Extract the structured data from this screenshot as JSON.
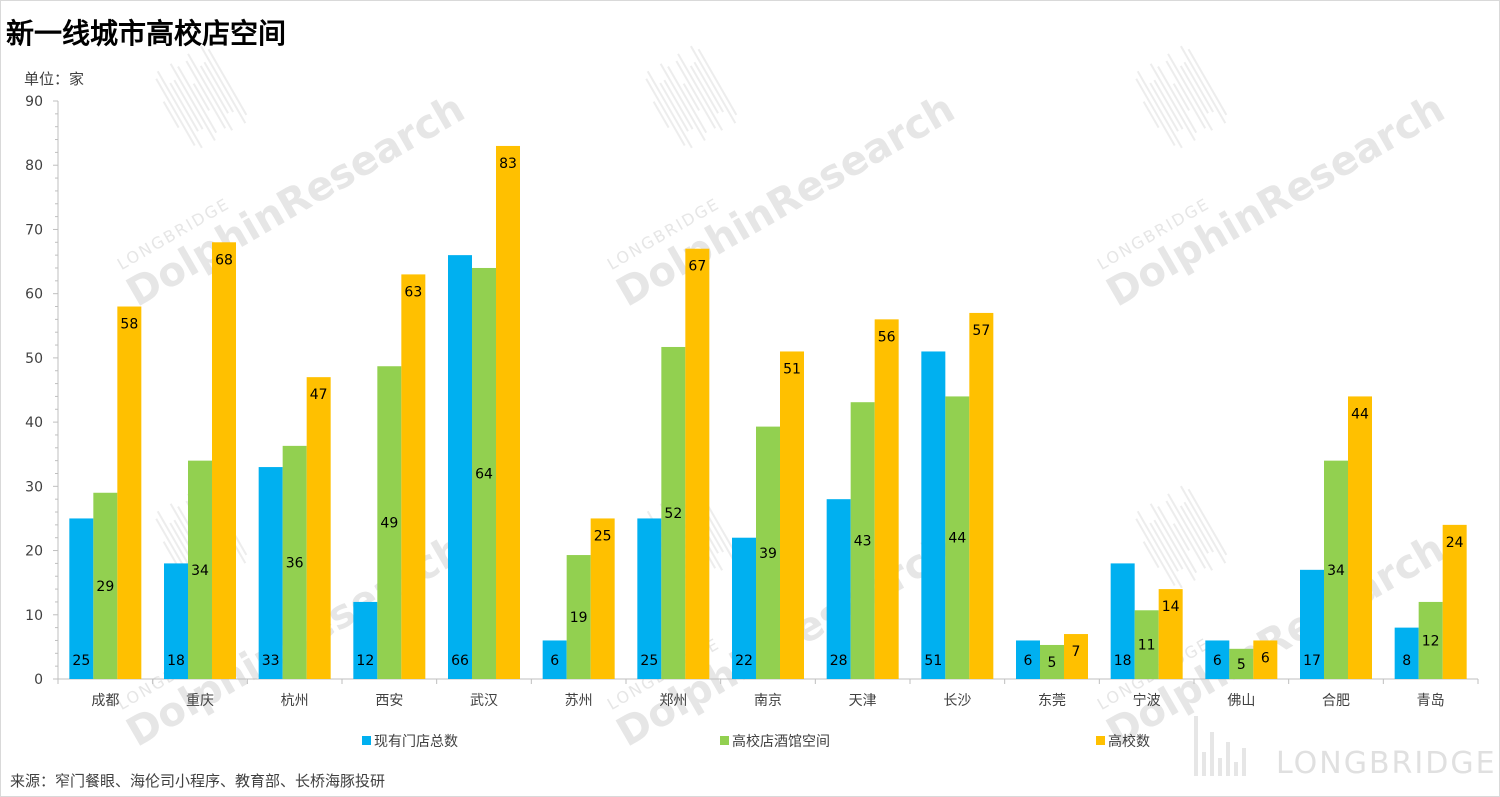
{
  "title": "新一线城市高校店空间",
  "unit_label": "单位：家",
  "source": "来源：窄门餐眼、海伦司小程序、教育部、长桥海豚投研",
  "watermark": {
    "brand": "LONGBRIDGE",
    "research": "DolphinResearch",
    "footer_brand": "LONGBRIDGE"
  },
  "chart_data": {
    "type": "bar",
    "title": "新一线城市高校店空间",
    "ylabel": "单位：家",
    "ylim": [
      0,
      90
    ],
    "yticks": [
      0,
      10,
      20,
      30,
      40,
      50,
      60,
      70,
      80,
      90
    ],
    "grid": false,
    "legend_position": "bottom",
    "categories": [
      "成都",
      "重庆",
      "杭州",
      "西安",
      "武汉",
      "苏州",
      "郑州",
      "南京",
      "天津",
      "长沙",
      "东莞",
      "宁波",
      "佛山",
      "合肥",
      "青岛"
    ],
    "series": [
      {
        "name": "现有门店总数",
        "color": "#00b0f0",
        "values": [
          25,
          18,
          33,
          12,
          66,
          6,
          25,
          22,
          28,
          51,
          6,
          18,
          6,
          17,
          8
        ],
        "labels": [
          25,
          18,
          33,
          12,
          66,
          6,
          25,
          22,
          28,
          51,
          6,
          18,
          6,
          17,
          8
        ]
      },
      {
        "name": "高校店酒馆空间",
        "color": "#92d050",
        "values": [
          29,
          34,
          36.3,
          48.7,
          64,
          19.3,
          51.7,
          39.3,
          43.1,
          44,
          5.3,
          10.7,
          4.7,
          34,
          12
        ],
        "labels": [
          29,
          34,
          36,
          49,
          64,
          19,
          52,
          39,
          43,
          44,
          5,
          11,
          5,
          34,
          12
        ]
      },
      {
        "name": "高校数",
        "color": "#ffc000",
        "values": [
          58,
          68,
          47,
          63,
          83,
          25,
          67,
          51,
          56,
          57,
          7,
          14,
          6,
          44,
          24
        ],
        "labels": [
          58,
          68,
          47,
          63,
          83,
          25,
          67,
          51,
          56,
          57,
          7,
          14,
          6,
          44,
          24
        ]
      }
    ]
  }
}
